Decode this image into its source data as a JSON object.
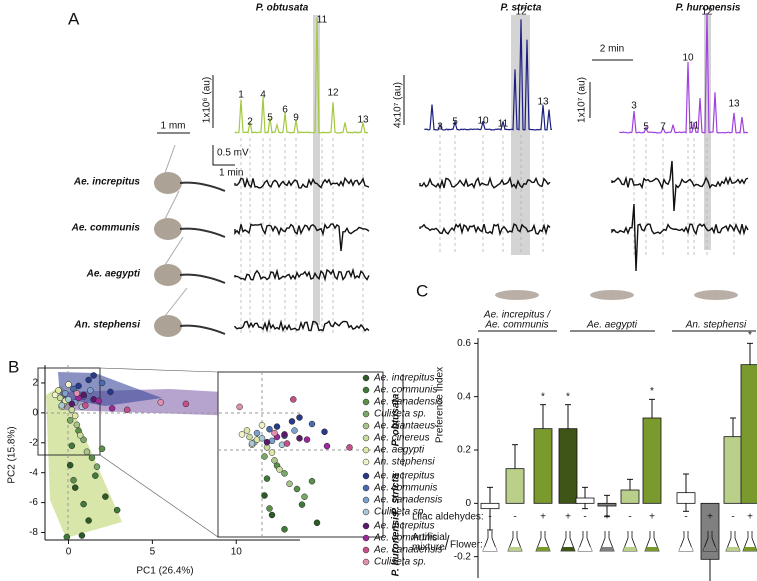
{
  "panel_labels": [
    "A",
    "B",
    "C"
  ],
  "panel_a": {
    "plants": [
      {
        "name": "P. obtusata",
        "scale": "1x10⁶ (au)",
        "peaks": [
          "1",
          "2",
          "4",
          "5",
          "6",
          "9",
          "11",
          "12",
          "13"
        ]
      },
      {
        "name": "P. stricta",
        "scale": "4x10⁷ (au)",
        "peaks": [
          "3",
          "5",
          "10",
          "11",
          "12",
          "13"
        ]
      },
      {
        "name": "P. huronensis",
        "scale": "1x10⁷ (au)",
        "peaks": [
          "3",
          "5",
          "7",
          "10",
          "11",
          "12",
          "13"
        ]
      }
    ],
    "mosquitoes": [
      "Ae. increpitus",
      "Ae. communis",
      "Ae. aegypti",
      "An. stephensi"
    ],
    "scale_bars": {
      "chromatogram_time": "2 min",
      "head": "1 mm",
      "voltage": "0.5 mV",
      "ead_time": "1 min"
    }
  },
  "chart_data": [
    {
      "type": "scatter",
      "xlabel": "PC1 (26.4%)",
      "ylabel": "PC2 (15.8%)",
      "xlim": [
        -1.4,
        13.8
      ],
      "ylim": [
        -8.5,
        3.2
      ],
      "xticks": [
        0,
        5,
        10
      ],
      "yticks": [
        -8,
        -6,
        -4,
        -2,
        0,
        2
      ],
      "groups": [
        {
          "name": "P. obtusata",
          "series": [
            {
              "name": "Ae. increpitus",
              "color": "#2d5a27",
              "x": [
                0.4,
                1.2,
                2.2,
                0.8,
                0.1
              ],
              "y": [
                -5,
                -7.2,
                -5.6,
                -8.2,
                -3.5
              ]
            },
            {
              "name": "Ae. communis",
              "color": "#3f7a3a",
              "x": [
                0.2,
                1.6,
                0.9,
                2.9,
                -0.1
              ],
              "y": [
                -2.2,
                -4.2,
                -6.1,
                -6.5,
                -8.3
              ]
            },
            {
              "name": "Ae. canadensis",
              "color": "#5c8f4a",
              "x": [
                0.6,
                1.4,
                0.3,
                2.0
              ],
              "y": [
                -1.2,
                -3.0,
                -4.5,
                -2.4
              ]
            },
            {
              "name": "Culiseta sp.",
              "color": "#7aa86a",
              "x": [
                0.1,
                0.9,
                1.7
              ],
              "y": [
                -0.5,
                -1.8,
                -3.6
              ]
            },
            {
              "name": "Ae. diantaeus",
              "color": "#a8c48a",
              "x": [
                -0.3,
                0.5,
                1.1
              ],
              "y": [
                0.6,
                -0.8,
                -2.6
              ]
            },
            {
              "name": "Ae. cinereus",
              "color": "#c8dca0",
              "x": [
                -0.5,
                0.2,
                0.7
              ],
              "y": [
                1.0,
                0.2,
                -1.5
              ]
            },
            {
              "name": "Ae. aegypti",
              "color": "#e0e8a8",
              "x": [
                -0.6,
                -0.2,
                0.4
              ],
              "y": [
                1.5,
                0.8,
                -0.2
              ]
            },
            {
              "name": "An. stephensi",
              "color": "#f2f2c8",
              "x": [
                -0.8,
                -0.4,
                0.0
              ],
              "y": [
                1.2,
                0.4,
                1.9
              ]
            }
          ]
        },
        {
          "name": "P. stricta",
          "series": [
            {
              "name": "Ae. increpitus",
              "color": "#2a3a8a",
              "x": [
                1.5,
                0.6,
                2.5,
                1.2
              ],
              "y": [
                2.5,
                1.8,
                1.4,
                2.2
              ]
            },
            {
              "name": "Ae. communis",
              "color": "#4a6ab0",
              "x": [
                0.9,
                2.0,
                0.3
              ],
              "y": [
                1.1,
                2.0,
                1.6
              ]
            },
            {
              "name": "Ae. canadensis",
              "color": "#7ea0cc",
              "x": [
                0.4,
                1.3,
                -0.2
              ],
              "y": [
                0.7,
                1.5,
                1.3
              ]
            },
            {
              "name": "Culiseta sp.",
              "color": "#a8c8d8",
              "x": [
                0.0,
                0.8,
                -0.4
              ],
              "y": [
                0.9,
                0.4,
                0.5
              ]
            }
          ]
        },
        {
          "name": "P. huronensis",
          "series": [
            {
              "name": "Ae. increpitus",
              "color": "#5a1a6a",
              "x": [
                0.2,
                0.9,
                1.5
              ],
              "y": [
                0.6,
                1.2,
                0.9
              ]
            },
            {
              "name": "Ae. communis",
              "color": "#9a2a9a",
              "x": [
                0.6,
                1.8,
                2.6
              ],
              "y": [
                1.0,
                0.8,
                0.3
              ]
            },
            {
              "name": "Ae. canadensis",
              "color": "#c8508a",
              "x": [
                1.0,
                3.5,
                7.0,
                13.4
              ],
              "y": [
                0.5,
                0.2,
                0.6,
                0.9
              ]
            },
            {
              "name": "Culiseta sp.",
              "color": "#e090b0",
              "x": [
                0.5,
                5.5,
                10.2
              ],
              "y": [
                1.3,
                0.7,
                0.4
              ]
            }
          ]
        }
      ]
    },
    {
      "type": "bar",
      "ylabel": "Preference Index",
      "ylim": [
        -0.28,
        0.62
      ],
      "yticks": [
        -0.2,
        0,
        0.2,
        0.4,
        0.6
      ],
      "lilac_label": "Lilac aldehydes:",
      "mixture_label": "Artificial mixture",
      "flower_label": "Flower:",
      "groups": [
        {
          "name": [
            "Ae. increpitus /",
            "Ae. communis"
          ],
          "values": [
            -0.02,
            0.13,
            0.28,
            0.28
          ],
          "errors": [
            0.08,
            0.09,
            0.09,
            0.09
          ],
          "colors": [
            "#ffffff",
            "#b9cf8a",
            "#7a9a2e",
            "#3e5517"
          ],
          "lilac": [
            "-",
            "-",
            "+",
            "+"
          ],
          "stars": [
            null,
            null,
            "*",
            "*"
          ]
        },
        {
          "name": [
            "Ae. aegypti"
          ],
          "values": [
            0.02,
            -0.01,
            0.05,
            0.32
          ],
          "errors": [
            0.04,
            0.04,
            0.04,
            0.07
          ],
          "colors": [
            "#ffffff",
            "#808080",
            "#b9cf8a",
            "#7a9a2e"
          ],
          "lilac": [
            "-",
            "+",
            "-",
            "+"
          ],
          "stars": [
            null,
            null,
            null,
            "*"
          ]
        },
        {
          "name": [
            "An. stephensi"
          ],
          "values": [
            0.04,
            -0.21,
            0.25,
            0.52
          ],
          "errors": [
            0.07,
            0.1,
            0.07,
            0.08
          ],
          "colors": [
            "#ffffff",
            "#808080",
            "#b9cf8a",
            "#7a9a2e"
          ],
          "lilac": [
            "-",
            "+",
            "-",
            "+"
          ],
          "stars": [
            null,
            null,
            null,
            "*"
          ]
        }
      ]
    }
  ]
}
